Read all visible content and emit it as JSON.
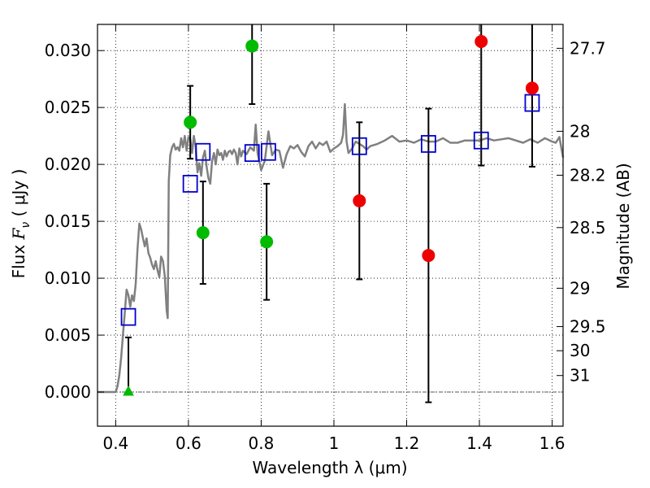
{
  "chart_data": {
    "type": "scatter",
    "xlabel": "Wavelength  λ (μm)",
    "ylabel_prefix": "Flux  ",
    "ylabel_symbol": "F",
    "ylabel_subscript": "ν",
    "ylabel_suffix": "  ( μJy )",
    "y2label": "Magnitude (AB)",
    "xlim": [
      0.35,
      1.63
    ],
    "ylim": [
      -0.003,
      0.0323
    ],
    "grid": true,
    "grid_style": "dotted",
    "zero_line": true,
    "x_ticks": [
      0.4,
      0.6,
      0.8,
      1.0,
      1.2,
      1.4,
      1.6
    ],
    "x_tick_labels": [
      "0.4",
      "0.6",
      "0.8",
      "1",
      "1.2",
      "1.4",
      "1.6"
    ],
    "y_ticks": [
      0.0,
      0.005,
      0.01,
      0.015,
      0.02,
      0.025,
      0.03
    ],
    "y_tick_labels": [
      "0.000",
      "0.005",
      "0.010",
      "0.015",
      "0.020",
      "0.025",
      "0.030"
    ],
    "mag_ticks": [
      {
        "label": "27.7",
        "flux": 0.0302
      },
      {
        "label": "28",
        "flux": 0.02291
      },
      {
        "label": "28.2",
        "flux": 0.01905
      },
      {
        "label": "28.5",
        "flux": 0.01445
      },
      {
        "label": "29",
        "flux": 0.00912
      },
      {
        "label": "29.5",
        "flux": 0.00575
      },
      {
        "label": "30",
        "flux": 0.00363
      },
      {
        "label": "31",
        "flux": 0.00145
      }
    ],
    "colors": {
      "sed": "#808080",
      "model": "#0000cc",
      "green": "#00bb00",
      "red": "#ee0000",
      "errorbar": "#000000",
      "grid": "#000000"
    },
    "sed_model": {
      "x": [
        0.35,
        0.36,
        0.37,
        0.38,
        0.39,
        0.4,
        0.405,
        0.41,
        0.415,
        0.42,
        0.425,
        0.43,
        0.435,
        0.44,
        0.445,
        0.45,
        0.455,
        0.46,
        0.465,
        0.47,
        0.475,
        0.48,
        0.485,
        0.49,
        0.495,
        0.5,
        0.505,
        0.51,
        0.515,
        0.52,
        0.525,
        0.53,
        0.535,
        0.54,
        0.543,
        0.546,
        0.55,
        0.555,
        0.56,
        0.565,
        0.57,
        0.575,
        0.58,
        0.585,
        0.59,
        0.595,
        0.6,
        0.605,
        0.61,
        0.615,
        0.62,
        0.625,
        0.63,
        0.635,
        0.64,
        0.645,
        0.65,
        0.655,
        0.66,
        0.665,
        0.67,
        0.675,
        0.68,
        0.685,
        0.69,
        0.695,
        0.7,
        0.705,
        0.71,
        0.715,
        0.72,
        0.725,
        0.73,
        0.735,
        0.74,
        0.745,
        0.75,
        0.76,
        0.77,
        0.78,
        0.785,
        0.79,
        0.8,
        0.81,
        0.82,
        0.83,
        0.84,
        0.85,
        0.86,
        0.87,
        0.88,
        0.89,
        0.9,
        0.91,
        0.92,
        0.93,
        0.94,
        0.95,
        0.96,
        0.97,
        0.98,
        0.99,
        1.0,
        1.01,
        1.02,
        1.025,
        1.03,
        1.035,
        1.04,
        1.05,
        1.06,
        1.07,
        1.08,
        1.09,
        1.1,
        1.12,
        1.14,
        1.16,
        1.18,
        1.2,
        1.22,
        1.24,
        1.26,
        1.28,
        1.3,
        1.32,
        1.34,
        1.36,
        1.38,
        1.4,
        1.42,
        1.44,
        1.46,
        1.48,
        1.5,
        1.52,
        1.54,
        1.56,
        1.58,
        1.6,
        1.61,
        1.62,
        1.63
      ],
      "y": [
        0.0,
        0.0,
        0.0,
        0.0,
        0.0,
        0.0,
        0.0005,
        0.0015,
        0.003,
        0.005,
        0.007,
        0.009,
        0.0085,
        0.0075,
        0.0085,
        0.008,
        0.0095,
        0.0125,
        0.0148,
        0.0143,
        0.0135,
        0.0128,
        0.0135,
        0.0122,
        0.0118,
        0.0112,
        0.0108,
        0.0115,
        0.0107,
        0.0101,
        0.0119,
        0.0115,
        0.0102,
        0.0072,
        0.0065,
        0.0185,
        0.0208,
        0.0215,
        0.0218,
        0.0213,
        0.0215,
        0.0212,
        0.0223,
        0.0215,
        0.0225,
        0.0212,
        0.0224,
        0.0222,
        0.021,
        0.0225,
        0.0215,
        0.0193,
        0.0201,
        0.019,
        0.0206,
        0.0212,
        0.0198,
        0.0188,
        0.0183,
        0.0203,
        0.021,
        0.02,
        0.0213,
        0.0208,
        0.021,
        0.0204,
        0.0212,
        0.0207,
        0.0211,
        0.0212,
        0.0209,
        0.0213,
        0.021,
        0.02,
        0.0214,
        0.0207,
        0.0212,
        0.0209,
        0.0215,
        0.0212,
        0.0235,
        0.021,
        0.0195,
        0.0203,
        0.0229,
        0.0208,
        0.0213,
        0.0212,
        0.0197,
        0.0209,
        0.0216,
        0.0214,
        0.0217,
        0.0211,
        0.0207,
        0.0216,
        0.022,
        0.0214,
        0.0219,
        0.0217,
        0.022,
        0.0211,
        0.0214,
        0.0216,
        0.0219,
        0.0226,
        0.0253,
        0.022,
        0.021,
        0.0214,
        0.022,
        0.0218,
        0.0216,
        0.0213,
        0.0216,
        0.0218,
        0.0221,
        0.0225,
        0.022,
        0.0221,
        0.0219,
        0.0222,
        0.022,
        0.022,
        0.0223,
        0.0219,
        0.0219,
        0.0221,
        0.0221,
        0.0221,
        0.0223,
        0.0221,
        0.0222,
        0.0223,
        0.0221,
        0.0219,
        0.0222,
        0.0219,
        0.0223,
        0.022,
        0.0219,
        0.0224,
        0.0206
      ]
    },
    "model_points": {
      "x": [
        0.435,
        0.605,
        0.64,
        0.775,
        0.82,
        1.07,
        1.26,
        1.405,
        1.545
      ],
      "y": [
        0.0066,
        0.0183,
        0.0211,
        0.021,
        0.0211,
        0.0216,
        0.0218,
        0.0221,
        0.0254
      ]
    },
    "observed_points": [
      {
        "x": 0.435,
        "y": 0.0,
        "yerr_lo": 0.0,
        "yerr_hi": 0.0048,
        "color": "green",
        "marker": "triangle"
      },
      {
        "x": 0.605,
        "y": 0.0237,
        "yerr_lo": 0.0032,
        "yerr_hi": 0.0032,
        "color": "green",
        "marker": "circle"
      },
      {
        "x": 0.64,
        "y": 0.014,
        "yerr_lo": 0.0045,
        "yerr_hi": 0.0045,
        "color": "green",
        "marker": "circle"
      },
      {
        "x": 0.775,
        "y": 0.0304,
        "yerr_lo": 0.0051,
        "yerr_hi": 0.0051,
        "color": "green",
        "marker": "circle"
      },
      {
        "x": 0.815,
        "y": 0.0132,
        "yerr_lo": 0.0051,
        "yerr_hi": 0.0051,
        "color": "green",
        "marker": "circle"
      },
      {
        "x": 1.07,
        "y": 0.0168,
        "yerr_lo": 0.0069,
        "yerr_hi": 0.0069,
        "color": "red",
        "marker": "circle"
      },
      {
        "x": 1.26,
        "y": 0.012,
        "yerr_lo": 0.0129,
        "yerr_hi": 0.0129,
        "color": "red",
        "marker": "circle"
      },
      {
        "x": 1.405,
        "y": 0.0308,
        "yerr_lo": 0.0109,
        "yerr_hi": 0.0109,
        "color": "red",
        "marker": "circle"
      },
      {
        "x": 1.545,
        "y": 0.0267,
        "yerr_lo": 0.0069,
        "yerr_hi": 0.0069,
        "color": "red",
        "marker": "circle"
      }
    ]
  }
}
